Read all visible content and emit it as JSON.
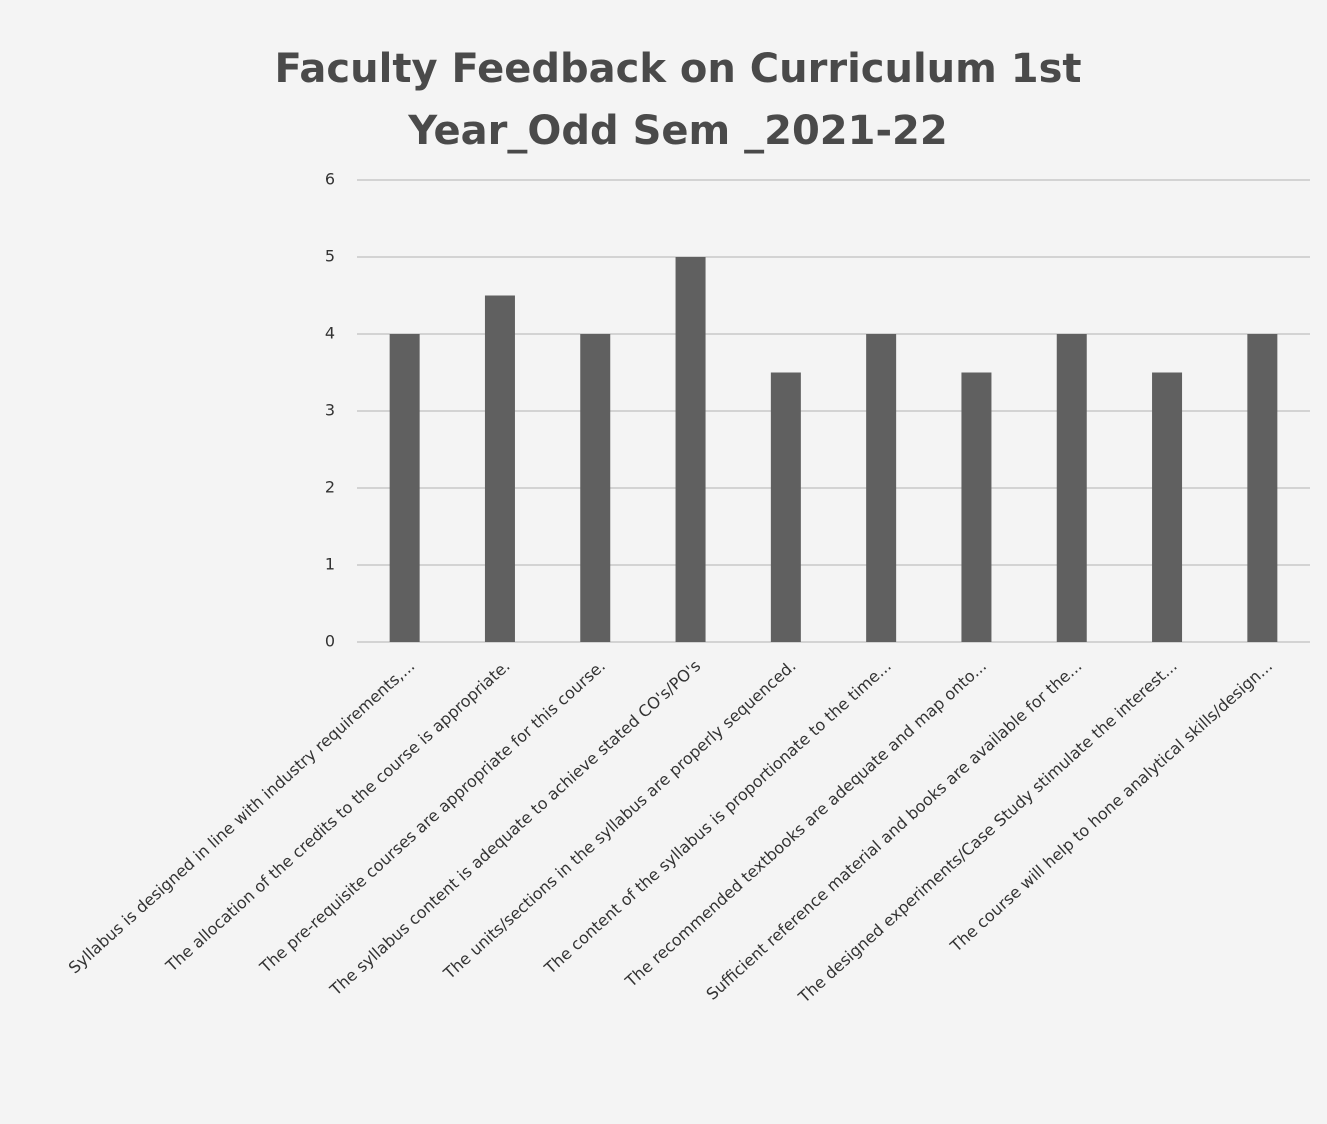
{
  "chart_data": {
    "type": "bar",
    "title": "Faculty Feedback on Curriculum 1st Year_Odd Sem _2021-22",
    "categories": [
      "Syllabus is designed in line with industry requirements,...",
      "The allocation of the credits to the course is appropriate.",
      "The pre-requisite courses are appropriate for this course.",
      "The syllabus content is adequate to achieve stated CO's/PO's",
      "The units/sections in the syllabus are properly sequenced.",
      "The content of the syllabus is proportionate to the time...",
      "The recommended textbooks are adequate and map onto...",
      "Sufficient reference material and books are available for the...",
      "The designed experiments/Case Study stimulate the interest...",
      "The course will help to hone analytical skills/design..."
    ],
    "values": [
      4,
      4.5,
      4,
      5,
      3.5,
      4,
      3.5,
      4,
      3.5,
      4
    ],
    "color": "#606060",
    "ylim": [
      0,
      6
    ],
    "yticks": [
      0,
      1,
      2,
      3,
      4,
      5,
      6
    ],
    "grid": true
  }
}
